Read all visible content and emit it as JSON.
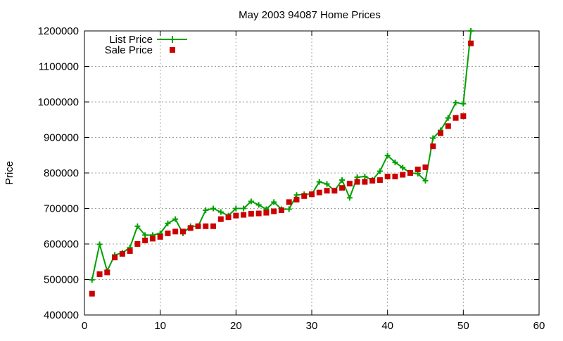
{
  "chart_data": {
    "type": "line",
    "title": "May 2003 94087 Home Prices",
    "xlabel": "",
    "ylabel": "Price",
    "xlim": [
      0,
      60
    ],
    "ylim": [
      400000,
      1200000
    ],
    "xticks": [
      0,
      10,
      20,
      30,
      40,
      50,
      60
    ],
    "yticks": [
      400000,
      500000,
      600000,
      700000,
      800000,
      900000,
      1000000,
      1100000,
      1200000
    ],
    "xtick_labels": [
      "0",
      "10",
      "20",
      "30",
      "40",
      "50",
      "60"
    ],
    "ytick_labels": [
      "400000",
      "500000",
      "600000",
      "700000",
      "800000",
      "900000",
      "1000000",
      "1100000",
      "1200000"
    ],
    "grid": true,
    "legend_position": "top-left",
    "x": [
      1,
      2,
      3,
      4,
      5,
      6,
      7,
      8,
      9,
      10,
      11,
      12,
      13,
      14,
      15,
      16,
      17,
      18,
      19,
      20,
      21,
      22,
      23,
      24,
      25,
      26,
      27,
      28,
      29,
      30,
      31,
      32,
      33,
      34,
      35,
      36,
      37,
      38,
      39,
      40,
      41,
      42,
      43,
      44,
      45,
      46,
      47,
      48,
      49,
      50,
      51
    ],
    "series": [
      {
        "name": "List Price",
        "style": "linespoints",
        "marker": "plus",
        "color": "#00a000",
        "values": [
          499000,
          599000,
          524000,
          569000,
          575000,
          590000,
          650000,
          625000,
          625000,
          630000,
          658000,
          670000,
          630000,
          650000,
          650000,
          695000,
          700000,
          690000,
          680000,
          700000,
          700000,
          720000,
          710000,
          698000,
          718000,
          698000,
          698000,
          738000,
          740000,
          740000,
          775000,
          769000,
          750000,
          780000,
          730000,
          788000,
          790000,
          780000,
          805000,
          849000,
          830000,
          815000,
          800000,
          798000,
          778000,
          898000,
          920000,
          955000,
          998000,
          995000,
          1200000
        ]
      },
      {
        "name": "Sale Price",
        "style": "points",
        "marker": "square",
        "color": "#cc0000",
        "values": [
          460000,
          515000,
          520000,
          562000,
          572000,
          580000,
          600000,
          610000,
          615000,
          620000,
          630000,
          635000,
          635000,
          645000,
          650000,
          650000,
          650000,
          670000,
          675000,
          680000,
          682000,
          685000,
          686000,
          688000,
          692000,
          695000,
          718000,
          725000,
          735000,
          740000,
          745000,
          750000,
          750000,
          758000,
          770000,
          775000,
          775000,
          778000,
          780000,
          790000,
          790000,
          795000,
          800000,
          810000,
          816000,
          875000,
          912000,
          932000,
          955000,
          960000,
          1165000
        ]
      }
    ]
  }
}
